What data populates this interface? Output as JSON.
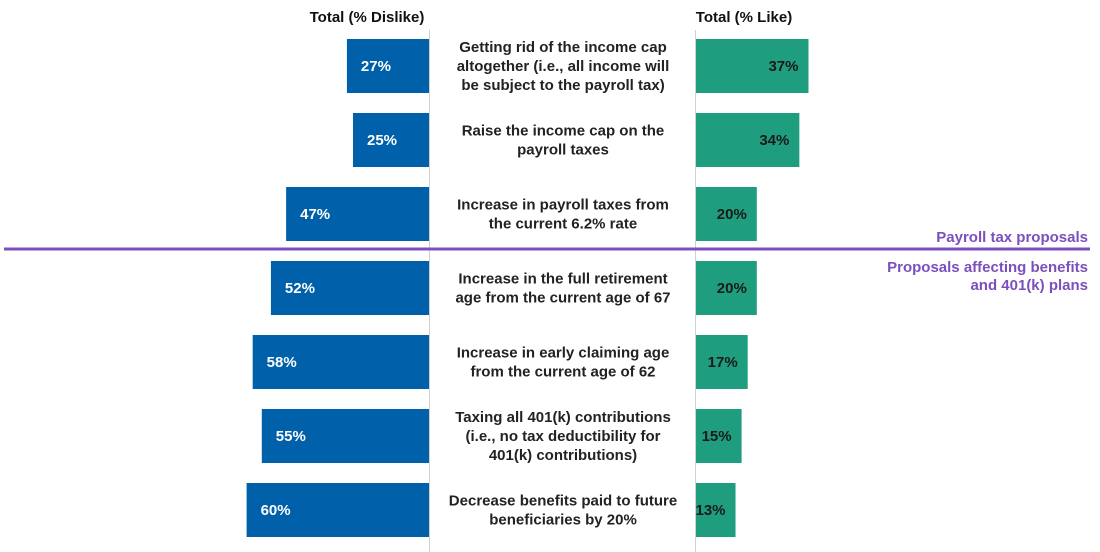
{
  "headers": {
    "dislike": "Total (% Dislike)",
    "like": "Total (% Like)"
  },
  "groups": {
    "payroll": "Payroll tax proposals",
    "benefits_line1": "Proposals affecting benefits",
    "benefits_line2": "and 401(k) plans"
  },
  "colors": {
    "dislike": "#0060A9",
    "like": "#1E9E7E",
    "divider": "#7B4FBE",
    "group_text": "#7B4FBE"
  },
  "chart_data": {
    "type": "bar",
    "orientation": "diverging-horizontal",
    "categories": [
      [
        "Getting rid of the income cap",
        "altogether (i.e., all income will",
        "be subject to the payroll tax)"
      ],
      [
        "Raise the income cap on the",
        "payroll taxes"
      ],
      [
        "Increase in payroll taxes from",
        "the current 6.2% rate"
      ],
      [
        "Increase in the full retirement",
        "age from the current age of 67"
      ],
      [
        "Increase in early claiming age",
        "from the current age of 62"
      ],
      [
        "Taxing all 401(k) contributions",
        "(i.e., no tax deductibility for",
        "401(k) contributions)"
      ],
      [
        "Decrease benefits paid to future",
        "beneficiaries by 20%"
      ]
    ],
    "series": [
      {
        "name": "Total (% Dislike)",
        "values": [
          27,
          25,
          47,
          52,
          58,
          55,
          60
        ],
        "labels": [
          "27%",
          "25%",
          "47%",
          "52%",
          "58%",
          "55%",
          "60%"
        ]
      },
      {
        "name": "Total (% Like)",
        "values": [
          37,
          34,
          20,
          20,
          17,
          15,
          13
        ],
        "labels": [
          "37%",
          "34%",
          "20%",
          "20%",
          "17%",
          "15%",
          "13%"
        ]
      }
    ],
    "group_split_after_index": 2
  }
}
